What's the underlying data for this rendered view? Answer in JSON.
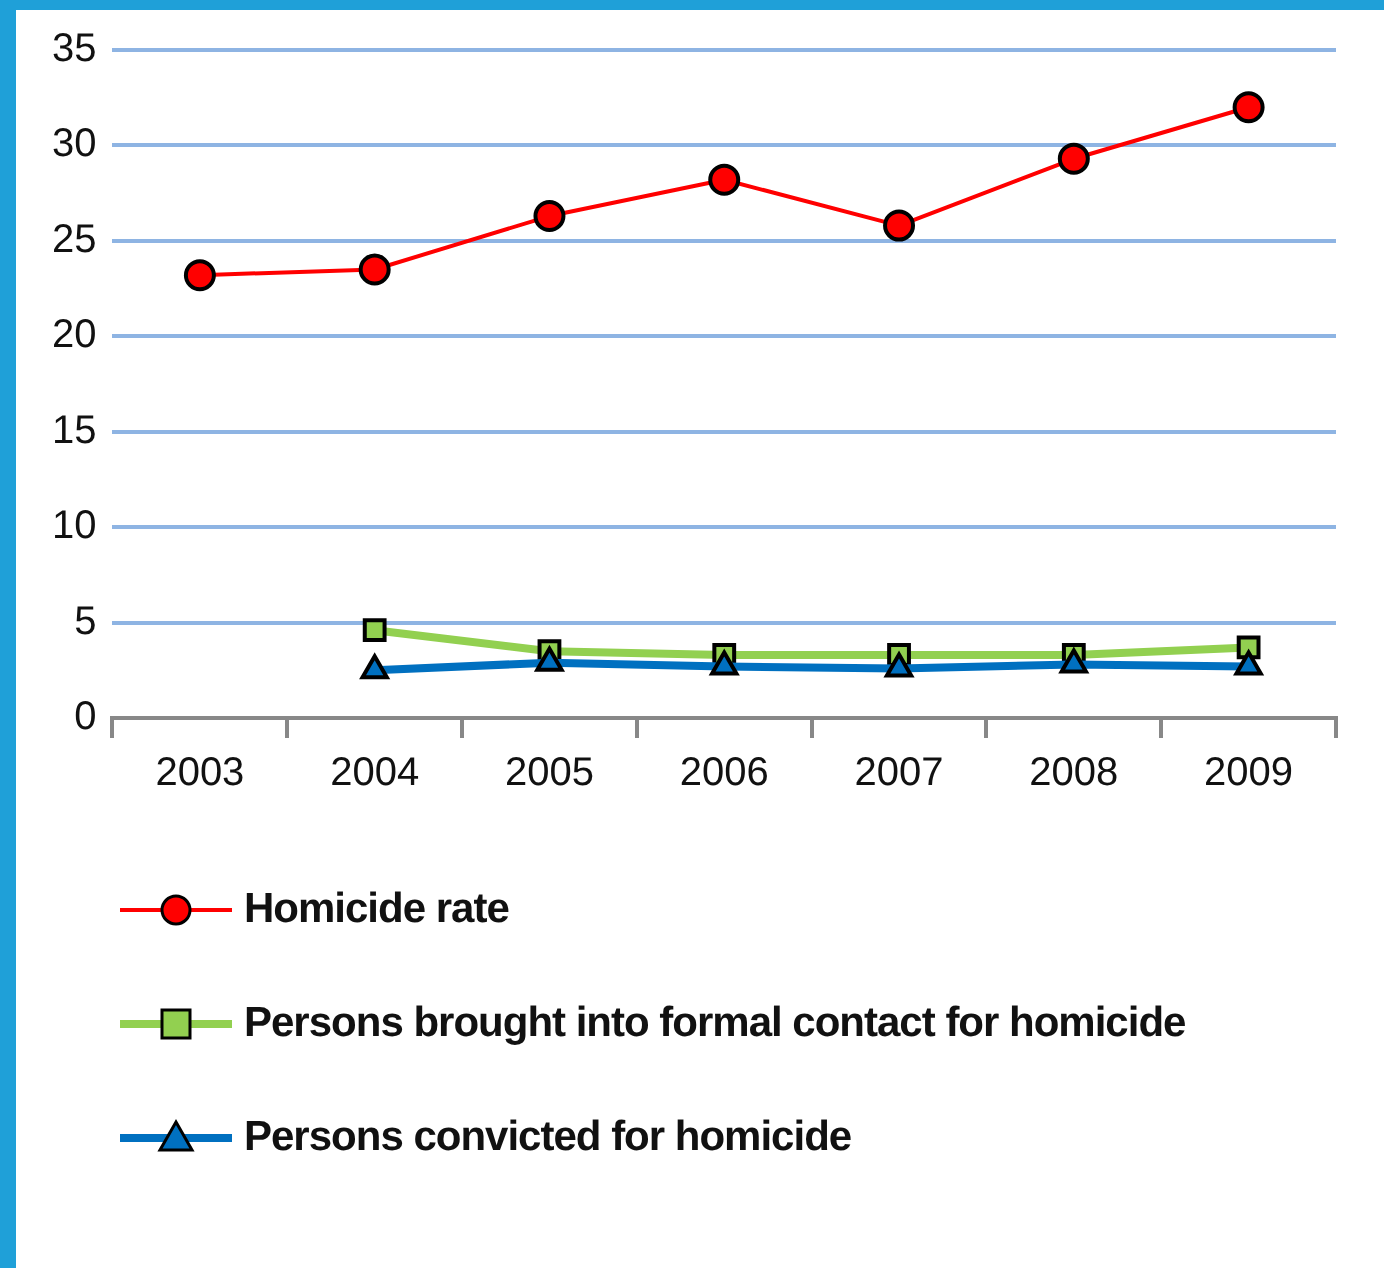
{
  "chart_data": {
    "type": "line",
    "categories": [
      "2003",
      "2004",
      "2005",
      "2006",
      "2007",
      "2008",
      "2009"
    ],
    "series": [
      {
        "name": "Homicide rate",
        "color": "#ff0000",
        "marker": "circle",
        "values": [
          23.2,
          23.5,
          26.3,
          28.2,
          25.8,
          29.3,
          32.0
        ]
      },
      {
        "name": "Persons brought into formal contact for homicide",
        "color": "#92d050",
        "marker": "square",
        "values": [
          null,
          4.6,
          3.5,
          3.3,
          3.3,
          3.3,
          3.7
        ]
      },
      {
        "name": "Persons convicted for homicide",
        "color": "#0070c0",
        "marker": "triangle",
        "values": [
          null,
          2.5,
          2.9,
          2.7,
          2.6,
          2.8,
          2.7
        ]
      }
    ],
    "ylim": [
      0,
      35
    ],
    "yticks": [
      0,
      5,
      10,
      15,
      20,
      25,
      30,
      35
    ],
    "grid": "y",
    "legend": "bottom"
  }
}
